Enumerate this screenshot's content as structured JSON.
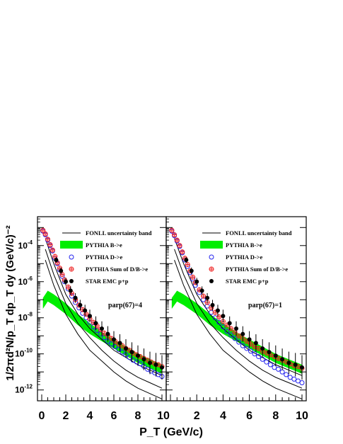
{
  "chart_data": {
    "type": "scatter",
    "ylabel": "1/2πd²N/p_T dp_T dy (GeV/c)⁻²",
    "xlabel": "P_T (GeV/c)",
    "xlim": [
      0,
      10
    ],
    "ylim_log10": [
      -12.6,
      -2.4
    ],
    "x_ticks": [
      "0",
      "2",
      "4",
      "6",
      "8",
      "10"
    ],
    "y_ticks": [
      {
        "base": "10",
        "exp": "-4",
        "log": -4
      },
      {
        "base": "10",
        "exp": "-6",
        "log": -6
      },
      {
        "base": "10",
        "exp": "-8",
        "log": -8
      },
      {
        "base": "10",
        "exp": "-10",
        "log": -10
      },
      {
        "base": "10",
        "exp": "-12",
        "log": -12
      }
    ],
    "legend": {
      "placement": "top-right",
      "entries": [
        {
          "label": "FONLL uncertainty band",
          "marker": "line"
        },
        {
          "label": "PYTHIA B->e",
          "marker": "band"
        },
        {
          "label": "PYTHIA D->e",
          "marker": "open-circle"
        },
        {
          "label": "PYTHIA Sum of D/B->e",
          "marker": "open-cross"
        },
        {
          "label": "STAR EMC p+p",
          "marker": "filled-circle"
        }
      ]
    },
    "colors": {
      "fonll": "#000000",
      "b_band": "#00ee00",
      "d_points": "#2222ee",
      "sum_points": "#ee2222",
      "star_points": "#000000",
      "frame": "#000000"
    },
    "panels": [
      {
        "annotation": "parp(67)=4",
        "fonll_upper": [
          [
            0.3,
            -3.6
          ],
          [
            1,
            -5.0
          ],
          [
            2,
            -6.7
          ],
          [
            3,
            -7.8
          ],
          [
            4,
            -8.6
          ],
          [
            5,
            -9.2
          ],
          [
            6,
            -9.8
          ],
          [
            7,
            -10.2
          ],
          [
            8,
            -10.6
          ],
          [
            9,
            -10.9
          ],
          [
            10,
            -11.2
          ]
        ],
        "fonll_mid": [
          [
            0.3,
            -4.2
          ],
          [
            1,
            -5.6
          ],
          [
            2,
            -7.2
          ],
          [
            3,
            -8.3
          ],
          [
            4,
            -9.1
          ],
          [
            5,
            -9.8
          ],
          [
            6,
            -10.4
          ],
          [
            7,
            -10.9
          ],
          [
            8,
            -11.3
          ],
          [
            9,
            -11.6
          ],
          [
            10,
            -11.9
          ]
        ],
        "fonll_lower": [
          [
            0.3,
            -4.8
          ],
          [
            1,
            -6.2
          ],
          [
            2,
            -7.8
          ],
          [
            3,
            -8.9
          ],
          [
            4,
            -9.8
          ],
          [
            5,
            -10.4
          ],
          [
            6,
            -11.0
          ],
          [
            7,
            -11.5
          ],
          [
            8,
            -11.9
          ],
          [
            9,
            -12.2
          ],
          [
            10,
            -12.5
          ]
        ],
        "b_band_upper": [
          [
            0.1,
            -6.9
          ],
          [
            0.5,
            -6.5
          ],
          [
            1,
            -6.7
          ],
          [
            2,
            -7.2
          ],
          [
            3,
            -7.8
          ],
          [
            4,
            -8.3
          ],
          [
            5,
            -8.8
          ],
          [
            6,
            -9.2
          ],
          [
            7,
            -9.6
          ],
          [
            8,
            -10.0
          ],
          [
            9,
            -10.3
          ],
          [
            10,
            -10.6
          ]
        ],
        "b_band_lower": [
          [
            0.1,
            -7.5
          ],
          [
            0.5,
            -7.1
          ],
          [
            1,
            -7.3
          ],
          [
            2,
            -7.8
          ],
          [
            3,
            -8.4
          ],
          [
            4,
            -8.9
          ],
          [
            5,
            -9.3
          ],
          [
            6,
            -9.7
          ],
          [
            7,
            -10.1
          ],
          [
            8,
            -10.5
          ],
          [
            9,
            -10.8
          ],
          [
            10,
            -11.1
          ]
        ],
        "d_points": [
          [
            0.1,
            -3.2
          ],
          [
            0.3,
            -3.4
          ],
          [
            0.5,
            -3.7
          ],
          [
            0.7,
            -4.0
          ],
          [
            0.9,
            -4.3
          ],
          [
            1.1,
            -4.7
          ],
          [
            1.3,
            -5.0
          ],
          [
            1.5,
            -5.35
          ],
          [
            1.7,
            -5.7
          ],
          [
            1.9,
            -6.0
          ],
          [
            2.2,
            -6.4
          ],
          [
            2.5,
            -6.8
          ],
          [
            2.8,
            -7.15
          ],
          [
            3.1,
            -7.45
          ],
          [
            3.4,
            -7.75
          ],
          [
            3.7,
            -8.0
          ],
          [
            4.0,
            -8.25
          ],
          [
            4.3,
            -8.5
          ],
          [
            4.6,
            -8.7
          ],
          [
            4.9,
            -8.9
          ],
          [
            5.2,
            -9.1
          ],
          [
            5.5,
            -9.3
          ],
          [
            5.8,
            -9.45
          ],
          [
            6.1,
            -9.6
          ],
          [
            6.4,
            -9.75
          ],
          [
            6.7,
            -9.9
          ],
          [
            7.0,
            -10.05
          ],
          [
            7.3,
            -10.2
          ],
          [
            7.6,
            -10.35
          ],
          [
            7.9,
            -10.45
          ],
          [
            8.2,
            -10.55
          ],
          [
            8.5,
            -10.7
          ],
          [
            8.8,
            -10.85
          ],
          [
            9.1,
            -10.95
          ],
          [
            9.4,
            -11.05
          ],
          [
            9.7,
            -11.15
          ],
          [
            10.0,
            -11.25
          ]
        ],
        "sum_points": [
          [
            0.1,
            -3.15
          ],
          [
            0.3,
            -3.35
          ],
          [
            0.5,
            -3.65
          ],
          [
            0.7,
            -3.95
          ],
          [
            0.9,
            -4.25
          ],
          [
            1.1,
            -4.6
          ],
          [
            1.3,
            -4.95
          ],
          [
            1.5,
            -5.25
          ],
          [
            1.7,
            -5.6
          ],
          [
            1.9,
            -5.9
          ],
          [
            2.2,
            -6.3
          ],
          [
            2.5,
            -6.65
          ],
          [
            2.8,
            -7.0
          ],
          [
            3.1,
            -7.3
          ],
          [
            3.4,
            -7.55
          ],
          [
            3.7,
            -7.8
          ],
          [
            4.0,
            -8.05
          ],
          [
            4.3,
            -8.25
          ],
          [
            4.6,
            -8.45
          ],
          [
            4.9,
            -8.65
          ],
          [
            5.2,
            -8.85
          ],
          [
            5.5,
            -9.0
          ],
          [
            5.8,
            -9.15
          ],
          [
            6.1,
            -9.3
          ],
          [
            6.4,
            -9.45
          ],
          [
            6.7,
            -9.55
          ],
          [
            7.0,
            -9.7
          ],
          [
            7.3,
            -9.8
          ],
          [
            7.6,
            -9.95
          ],
          [
            7.9,
            -10.05
          ],
          [
            8.2,
            -10.15
          ],
          [
            8.5,
            -10.25
          ],
          [
            8.8,
            -10.35
          ],
          [
            9.1,
            -10.45
          ],
          [
            9.4,
            -10.55
          ],
          [
            9.7,
            -10.6
          ],
          [
            10.0,
            -10.7
          ]
        ],
        "star_points": [
          [
            1.2,
            -4.8
          ],
          [
            1.6,
            -5.4
          ],
          [
            2.0,
            -6.0
          ],
          [
            2.4,
            -6.5
          ],
          [
            2.8,
            -6.9
          ],
          [
            3.2,
            -7.3
          ],
          [
            3.6,
            -7.6
          ],
          [
            4.0,
            -7.9
          ],
          [
            4.5,
            -8.3
          ],
          [
            5.0,
            -8.6
          ],
          [
            5.5,
            -8.9
          ],
          [
            6.0,
            -9.2
          ],
          [
            6.5,
            -9.4
          ],
          [
            7.0,
            -9.7
          ],
          [
            7.5,
            -9.9
          ],
          [
            8.0,
            -10.1
          ],
          [
            8.5,
            -10.3
          ],
          [
            9.0,
            -10.5
          ],
          [
            9.5,
            -10.6
          ],
          [
            10.0,
            -10.75
          ]
        ]
      },
      {
        "annotation": "parp(67)=1",
        "fonll_upper": [
          [
            0.3,
            -3.6
          ],
          [
            1,
            -5.0
          ],
          [
            2,
            -6.7
          ],
          [
            3,
            -7.8
          ],
          [
            4,
            -8.6
          ],
          [
            5,
            -9.2
          ],
          [
            6,
            -9.8
          ],
          [
            7,
            -10.2
          ],
          [
            8,
            -10.6
          ],
          [
            9,
            -10.9
          ],
          [
            10,
            -11.2
          ]
        ],
        "fonll_mid": [
          [
            0.3,
            -4.2
          ],
          [
            1,
            -5.6
          ],
          [
            2,
            -7.2
          ],
          [
            3,
            -8.3
          ],
          [
            4,
            -9.1
          ],
          [
            5,
            -9.8
          ],
          [
            6,
            -10.4
          ],
          [
            7,
            -10.9
          ],
          [
            8,
            -11.3
          ],
          [
            9,
            -11.6
          ],
          [
            10,
            -11.9
          ]
        ],
        "fonll_lower": [
          [
            0.3,
            -4.8
          ],
          [
            1,
            -6.2
          ],
          [
            2,
            -7.8
          ],
          [
            3,
            -8.9
          ],
          [
            4,
            -9.8
          ],
          [
            5,
            -10.4
          ],
          [
            6,
            -11.0
          ],
          [
            7,
            -11.5
          ],
          [
            8,
            -11.9
          ],
          [
            9,
            -12.2
          ],
          [
            10,
            -12.5
          ]
        ],
        "b_band_upper": [
          [
            0.1,
            -6.9
          ],
          [
            0.5,
            -6.5
          ],
          [
            1,
            -6.7
          ],
          [
            2,
            -7.2
          ],
          [
            3,
            -7.8
          ],
          [
            4,
            -8.3
          ],
          [
            5,
            -8.8
          ],
          [
            6,
            -9.2
          ],
          [
            7,
            -9.6
          ],
          [
            8,
            -10.0
          ],
          [
            9,
            -10.3
          ],
          [
            10,
            -10.6
          ]
        ],
        "b_band_lower": [
          [
            0.1,
            -7.5
          ],
          [
            0.5,
            -7.1
          ],
          [
            1,
            -7.3
          ],
          [
            2,
            -7.8
          ],
          [
            3,
            -8.4
          ],
          [
            4,
            -8.9
          ],
          [
            5,
            -9.3
          ],
          [
            6,
            -9.7
          ],
          [
            7,
            -10.1
          ],
          [
            8,
            -10.5
          ],
          [
            9,
            -10.8
          ],
          [
            10,
            -11.1
          ]
        ],
        "d_points": [
          [
            0.1,
            -3.2
          ],
          [
            0.3,
            -3.45
          ],
          [
            0.5,
            -3.75
          ],
          [
            0.7,
            -4.05
          ],
          [
            0.9,
            -4.4
          ],
          [
            1.1,
            -4.8
          ],
          [
            1.3,
            -5.15
          ],
          [
            1.5,
            -5.5
          ],
          [
            1.7,
            -5.85
          ],
          [
            1.9,
            -6.2
          ],
          [
            2.2,
            -6.6
          ],
          [
            2.5,
            -7.0
          ],
          [
            2.8,
            -7.35
          ],
          [
            3.1,
            -7.7
          ],
          [
            3.4,
            -8.0
          ],
          [
            3.7,
            -8.25
          ],
          [
            4.0,
            -8.5
          ],
          [
            4.3,
            -8.75
          ],
          [
            4.6,
            -8.95
          ],
          [
            4.9,
            -9.15
          ],
          [
            5.2,
            -9.35
          ],
          [
            5.5,
            -9.55
          ],
          [
            5.8,
            -9.7
          ],
          [
            6.1,
            -9.85
          ],
          [
            6.4,
            -10.0
          ],
          [
            6.7,
            -10.15
          ],
          [
            7.0,
            -10.3
          ],
          [
            7.3,
            -10.45
          ],
          [
            7.6,
            -10.6
          ],
          [
            7.9,
            -10.75
          ],
          [
            8.2,
            -10.85
          ],
          [
            8.5,
            -11.0
          ],
          [
            8.8,
            -11.15
          ],
          [
            9.1,
            -11.3
          ],
          [
            9.4,
            -11.4
          ],
          [
            9.7,
            -11.5
          ],
          [
            10.0,
            -11.6
          ]
        ],
        "sum_points": [
          [
            0.1,
            -3.15
          ],
          [
            0.3,
            -3.4
          ],
          [
            0.5,
            -3.7
          ],
          [
            0.7,
            -4.0
          ],
          [
            0.9,
            -4.35
          ],
          [
            1.1,
            -4.7
          ],
          [
            1.3,
            -5.05
          ],
          [
            1.5,
            -5.4
          ],
          [
            1.7,
            -5.75
          ],
          [
            1.9,
            -6.05
          ],
          [
            2.2,
            -6.45
          ],
          [
            2.5,
            -6.8
          ],
          [
            2.8,
            -7.15
          ],
          [
            3.1,
            -7.45
          ],
          [
            3.4,
            -7.7
          ],
          [
            3.7,
            -7.95
          ],
          [
            4.0,
            -8.2
          ],
          [
            4.3,
            -8.4
          ],
          [
            4.6,
            -8.6
          ],
          [
            4.9,
            -8.8
          ],
          [
            5.2,
            -9.0
          ],
          [
            5.5,
            -9.15
          ],
          [
            5.8,
            -9.3
          ],
          [
            6.1,
            -9.45
          ],
          [
            6.4,
            -9.6
          ],
          [
            6.7,
            -9.7
          ],
          [
            7.0,
            -9.85
          ],
          [
            7.3,
            -9.95
          ],
          [
            7.6,
            -10.05
          ],
          [
            7.9,
            -10.15
          ],
          [
            8.2,
            -10.25
          ],
          [
            8.5,
            -10.35
          ],
          [
            8.8,
            -10.45
          ],
          [
            9.1,
            -10.55
          ],
          [
            9.4,
            -10.65
          ],
          [
            9.7,
            -10.7
          ],
          [
            10.0,
            -10.8
          ]
        ],
        "star_points": [
          [
            1.2,
            -4.8
          ],
          [
            1.6,
            -5.4
          ],
          [
            2.0,
            -6.0
          ],
          [
            2.4,
            -6.5
          ],
          [
            2.8,
            -6.9
          ],
          [
            3.2,
            -7.3
          ],
          [
            3.6,
            -7.6
          ],
          [
            4.0,
            -7.9
          ],
          [
            4.5,
            -8.3
          ],
          [
            5.0,
            -8.6
          ],
          [
            5.5,
            -8.9
          ],
          [
            6.0,
            -9.2
          ],
          [
            6.5,
            -9.4
          ],
          [
            7.0,
            -9.7
          ],
          [
            7.5,
            -9.9
          ],
          [
            8.0,
            -10.1
          ],
          [
            8.5,
            -10.3
          ],
          [
            9.0,
            -10.5
          ],
          [
            9.5,
            -10.6
          ],
          [
            10.0,
            -10.75
          ]
        ]
      }
    ]
  }
}
